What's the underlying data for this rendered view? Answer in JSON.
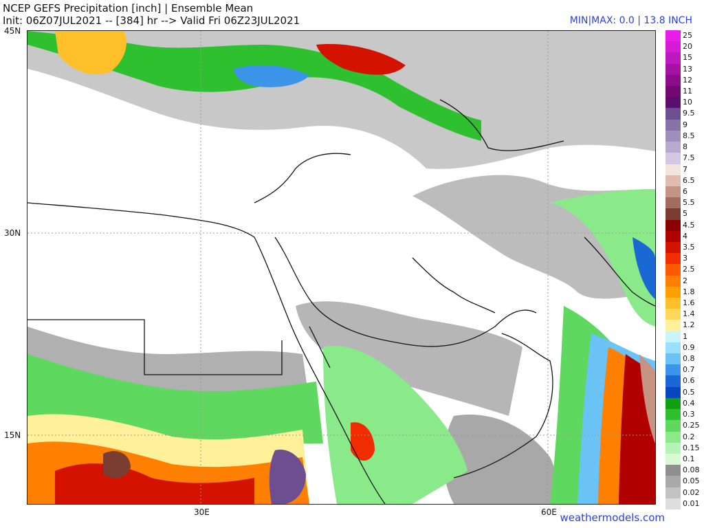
{
  "header": {
    "title_line1": "NCEP GEFS Precipitation [inch] | Ensemble Mean",
    "title_line2": "Init: 06Z07JUL2021 -- [384] hr --> Valid Fri 06Z23JUL2021",
    "minmax": "MIN|MAX: 0.0 | 13.8 INCH"
  },
  "axes": {
    "lat_labels": [
      "45N",
      "30N",
      "15N"
    ],
    "lon_labels": [
      "30E",
      "60E"
    ]
  },
  "credit": "weathermodels.com",
  "colorbar": {
    "levels": [
      "25",
      "20",
      "15",
      "13",
      "12",
      "11",
      "10",
      "9.5",
      "9",
      "8.5",
      "8",
      "7.5",
      "7",
      "6.5",
      "6",
      "5.5",
      "5",
      "4.5",
      "4",
      "3.5",
      "3",
      "2.5",
      "2",
      "1.8",
      "1.6",
      "1.4",
      "1.2",
      "1",
      "0.9",
      "0.8",
      "0.7",
      "0.6",
      "0.5",
      "0.4",
      "0.3",
      "0.25",
      "0.2",
      "0.15",
      "0.1",
      "0.08",
      "0.05",
      "0.02",
      "0.01"
    ],
    "colors": [
      "#e81ee8",
      "#d61ad6",
      "#bd18bd",
      "#a412a4",
      "#8c0d8c",
      "#730873",
      "#5a0f6e",
      "#6d4f91",
      "#8773a8",
      "#9f8fbd",
      "#b7aad1",
      "#d2c8e2",
      "#f3e4dc",
      "#e0bbb0",
      "#c59384",
      "#a26d5e",
      "#7b3d32",
      "#8a0000",
      "#b00000",
      "#d41200",
      "#f02d00",
      "#ff5a00",
      "#ff8000",
      "#ffa000",
      "#ffc02a",
      "#ffd75a",
      "#fff09a",
      "#c8f4fb",
      "#9ae0fb",
      "#6bc2f4",
      "#3c95e8",
      "#1a68d4",
      "#0a45c0",
      "#10a010",
      "#2fc02f",
      "#5fd85f",
      "#8aea8a",
      "#b4f4b4",
      "#d9fbd4",
      "#8f8f8f",
      "#a9a9a9",
      "#c3c3c3",
      "#dedede"
    ]
  }
}
